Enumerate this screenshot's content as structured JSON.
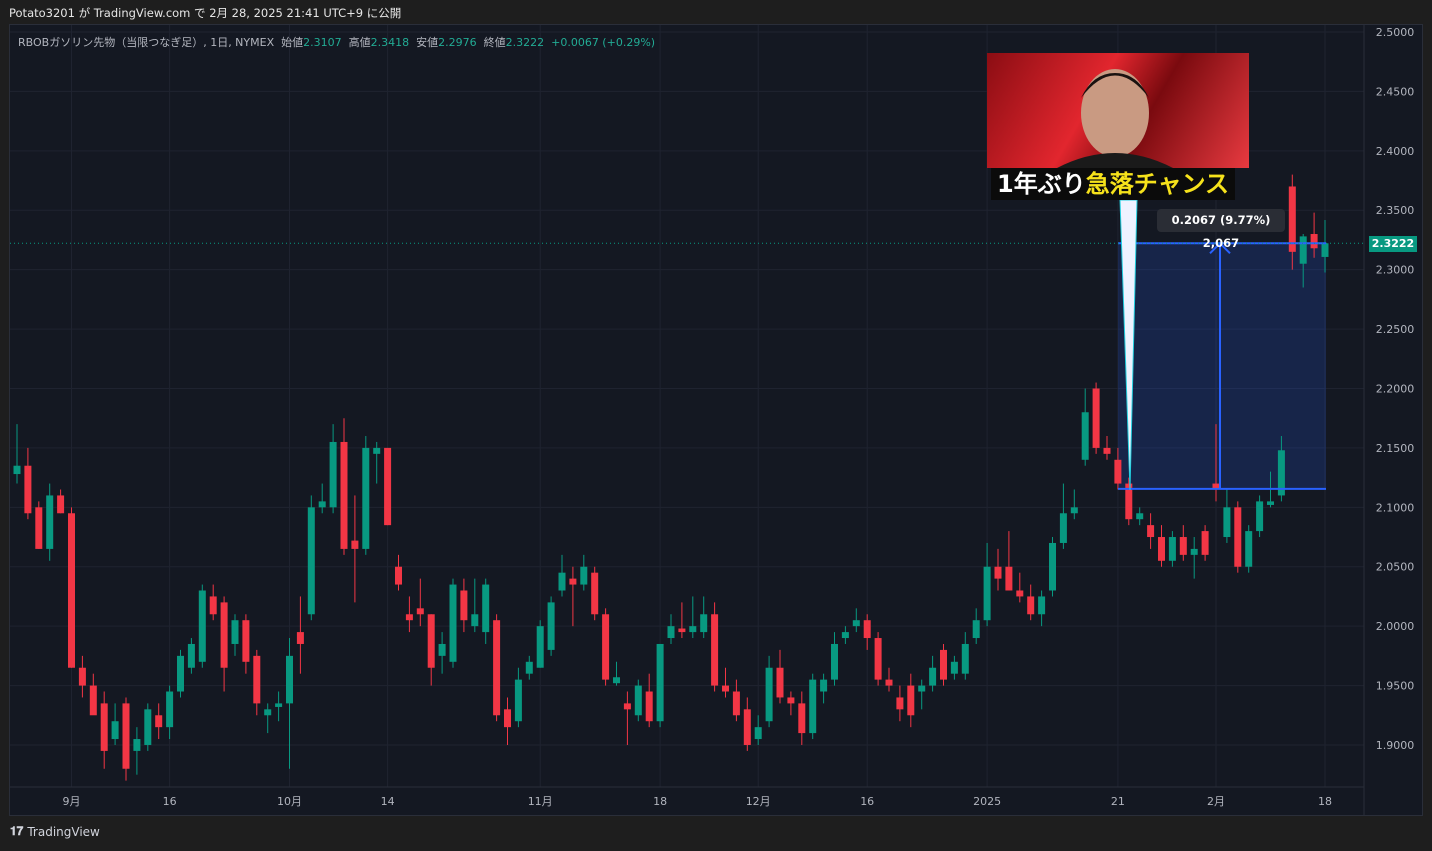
{
  "header": {
    "published": "Potato3201 が TradingView.com で 2月 28, 2025 21:41 UTC+9 に公開"
  },
  "legend": {
    "symbol": "RBOBガソリン先物（当限つなぎ足）, 1日, NYMEX",
    "open_label": "始値",
    "open": "2.3107",
    "high_label": "高値",
    "high": "2.3418",
    "low_label": "安値",
    "low": "2.2976",
    "close_label": "終値",
    "close": "2.3222",
    "change": "+0.0067 (+0.29%)"
  },
  "last_price": "2.3222",
  "measure": {
    "label": "0.2067 (9.77%) 2,067",
    "from_price": 2.1155,
    "to_price": 2.3222
  },
  "thumbnail": {
    "caption_white": "1年ぶり",
    "caption_yellow": "急落チャンス"
  },
  "footer": {
    "brand": "TradingView"
  },
  "colors": {
    "up": "#089981",
    "down": "#f23645",
    "background": "#141822",
    "measure": "#2962ff"
  },
  "chart_data": {
    "type": "candlestick",
    "ylim": [
      1.86,
      2.51
    ],
    "y_ticks": [
      "1.9000",
      "1.9500",
      "2.0000",
      "2.0500",
      "2.1000",
      "2.1500",
      "2.2000",
      "2.2500",
      "2.3000",
      "2.3500",
      "2.4000",
      "2.4500",
      "2.5000"
    ],
    "x_ticks": [
      {
        "label": "9月",
        "candle": 5
      },
      {
        "label": "16",
        "candle": 14
      },
      {
        "label": "10月",
        "candle": 25
      },
      {
        "label": "14",
        "candle": 34
      },
      {
        "label": "11月",
        "candle": 48
      },
      {
        "label": "18",
        "candle": 59
      },
      {
        "label": "12月",
        "candle": 68
      },
      {
        "label": "16",
        "candle": 78
      },
      {
        "label": "2025",
        "candle": 89
      },
      {
        "label": "21",
        "candle": 101
      },
      {
        "label": "2月",
        "candle": 110
      },
      {
        "label": "18",
        "candle": 120
      }
    ],
    "grid": true,
    "ohlc": [
      [
        2.128,
        2.17,
        2.12,
        2.135
      ],
      [
        2.135,
        2.15,
        2.09,
        2.095
      ],
      [
        2.1,
        2.105,
        2.065,
        2.065
      ],
      [
        2.065,
        2.12,
        2.055,
        2.11
      ],
      [
        2.11,
        2.115,
        2.095,
        2.095
      ],
      [
        2.095,
        2.1,
        1.965,
        1.965
      ],
      [
        1.965,
        1.975,
        1.94,
        1.95
      ],
      [
        1.95,
        1.96,
        1.93,
        1.925
      ],
      [
        1.935,
        1.945,
        1.88,
        1.895
      ],
      [
        1.905,
        1.935,
        1.9,
        1.92
      ],
      [
        1.935,
        1.94,
        1.87,
        1.88
      ],
      [
        1.895,
        1.915,
        1.875,
        1.905
      ],
      [
        1.9,
        1.935,
        1.895,
        1.93
      ],
      [
        1.925,
        1.935,
        1.905,
        1.915
      ],
      [
        1.915,
        1.95,
        1.905,
        1.945
      ],
      [
        1.945,
        1.98,
        1.94,
        1.975
      ],
      [
        1.965,
        1.99,
        1.96,
        1.985
      ],
      [
        1.97,
        2.035,
        1.965,
        2.03
      ],
      [
        2.025,
        2.035,
        2.005,
        2.01
      ],
      [
        2.02,
        2.025,
        1.945,
        1.965
      ],
      [
        1.985,
        2.01,
        1.975,
        2.005
      ],
      [
        2.005,
        2.01,
        1.96,
        1.97
      ],
      [
        1.975,
        1.98,
        1.925,
        1.935
      ],
      [
        1.925,
        1.935,
        1.91,
        1.93
      ],
      [
        1.932,
        1.945,
        1.92,
        1.935
      ],
      [
        1.935,
        1.99,
        1.88,
        1.975
      ],
      [
        1.995,
        2.025,
        1.96,
        1.985
      ],
      [
        2.01,
        2.11,
        2.005,
        2.1
      ],
      [
        2.1,
        2.12,
        2.095,
        2.105
      ],
      [
        2.1,
        2.17,
        2.095,
        2.155
      ],
      [
        2.155,
        2.175,
        2.06,
        2.065
      ],
      [
        2.072,
        2.11,
        2.02,
        2.065
      ],
      [
        2.065,
        2.16,
        2.06,
        2.15
      ],
      [
        2.145,
        2.155,
        2.12,
        2.15
      ],
      [
        2.15,
        2.15,
        2.085,
        2.085
      ],
      [
        2.05,
        2.06,
        2.03,
        2.035
      ],
      [
        2.01,
        2.025,
        1.995,
        2.005
      ],
      [
        2.015,
        2.04,
        2.0,
        2.01
      ],
      [
        2.01,
        2.01,
        1.95,
        1.965
      ],
      [
        1.975,
        1.995,
        1.96,
        1.985
      ],
      [
        1.97,
        2.04,
        1.965,
        2.035
      ],
      [
        2.03,
        2.04,
        1.995,
        2.005
      ],
      [
        2.0,
        2.04,
        1.995,
        2.01
      ],
      [
        1.995,
        2.04,
        1.985,
        2.035
      ],
      [
        2.005,
        2.01,
        1.92,
        1.925
      ],
      [
        1.93,
        1.94,
        1.9,
        1.915
      ],
      [
        1.92,
        1.965,
        1.915,
        1.955
      ],
      [
        1.96,
        1.975,
        1.955,
        1.97
      ],
      [
        1.965,
        2.005,
        1.965,
        2.0
      ],
      [
        1.98,
        2.025,
        1.975,
        2.02
      ],
      [
        2.03,
        2.06,
        2.025,
        2.045
      ],
      [
        2.04,
        2.05,
        2.0,
        2.035
      ],
      [
        2.035,
        2.06,
        2.03,
        2.05
      ],
      [
        2.045,
        2.05,
        2.005,
        2.01
      ],
      [
        2.01,
        2.015,
        1.95,
        1.955
      ],
      [
        1.952,
        1.97,
        1.95,
        1.957
      ],
      [
        1.935,
        1.945,
        1.9,
        1.93
      ],
      [
        1.925,
        1.955,
        1.92,
        1.95
      ],
      [
        1.945,
        1.96,
        1.915,
        1.92
      ],
      [
        1.92,
        1.985,
        1.915,
        1.985
      ],
      [
        1.99,
        2.01,
        1.985,
        2.0
      ],
      [
        1.998,
        2.02,
        1.99,
        1.995
      ],
      [
        1.995,
        2.025,
        1.99,
        2.0
      ],
      [
        1.995,
        2.025,
        1.99,
        2.01
      ],
      [
        2.01,
        2.02,
        1.945,
        1.95
      ],
      [
        1.95,
        1.965,
        1.94,
        1.945
      ],
      [
        1.945,
        1.955,
        1.92,
        1.925
      ],
      [
        1.93,
        1.94,
        1.895,
        1.9
      ],
      [
        1.905,
        1.925,
        1.9,
        1.915
      ],
      [
        1.92,
        1.975,
        1.915,
        1.965
      ],
      [
        1.965,
        1.98,
        1.935,
        1.94
      ],
      [
        1.94,
        1.945,
        1.925,
        1.935
      ],
      [
        1.935,
        1.945,
        1.9,
        1.91
      ],
      [
        1.91,
        1.96,
        1.905,
        1.955
      ],
      [
        1.945,
        1.96,
        1.935,
        1.955
      ],
      [
        1.955,
        1.995,
        1.95,
        1.985
      ],
      [
        1.99,
        2.0,
        1.985,
        1.995
      ],
      [
        2.0,
        2.015,
        1.995,
        2.005
      ],
      [
        2.005,
        2.01,
        1.98,
        1.99
      ],
      [
        1.99,
        1.995,
        1.95,
        1.955
      ],
      [
        1.955,
        1.965,
        1.945,
        1.95
      ],
      [
        1.94,
        1.95,
        1.92,
        1.93
      ],
      [
        1.95,
        1.96,
        1.915,
        1.925
      ],
      [
        1.945,
        1.955,
        1.93,
        1.95
      ],
      [
        1.95,
        1.975,
        1.945,
        1.965
      ],
      [
        1.98,
        1.985,
        1.95,
        1.955
      ],
      [
        1.96,
        1.975,
        1.955,
        1.97
      ],
      [
        1.96,
        1.995,
        1.955,
        1.985
      ],
      [
        1.99,
        2.015,
        1.985,
        2.005
      ],
      [
        2.005,
        2.07,
        2.0,
        2.05
      ],
      [
        2.05,
        2.065,
        2.03,
        2.04
      ],
      [
        2.05,
        2.08,
        2.03,
        2.03
      ],
      [
        2.03,
        2.045,
        2.02,
        2.025
      ],
      [
        2.025,
        2.035,
        2.005,
        2.01
      ],
      [
        2.01,
        2.03,
        2.0,
        2.025
      ],
      [
        2.03,
        2.075,
        2.025,
        2.07
      ],
      [
        2.07,
        2.12,
        2.065,
        2.095
      ],
      [
        2.095,
        2.115,
        2.09,
        2.1
      ],
      [
        2.14,
        2.2,
        2.135,
        2.18
      ],
      [
        2.2,
        2.205,
        2.145,
        2.15
      ],
      [
        2.15,
        2.16,
        2.14,
        2.145
      ],
      [
        2.14,
        2.15,
        2.115,
        2.12
      ],
      [
        2.12,
        2.125,
        2.085,
        2.09
      ],
      [
        2.09,
        2.1,
        2.085,
        2.095
      ],
      [
        2.085,
        2.095,
        2.065,
        2.075
      ],
      [
        2.075,
        2.085,
        2.05,
        2.055
      ],
      [
        2.055,
        2.08,
        2.05,
        2.075
      ],
      [
        2.075,
        2.085,
        2.055,
        2.06
      ],
      [
        2.06,
        2.075,
        2.04,
        2.065
      ],
      [
        2.08,
        2.085,
        2.055,
        2.06
      ],
      [
        2.12,
        2.17,
        2.105,
        2.115
      ],
      [
        2.075,
        2.115,
        2.07,
        2.1
      ],
      [
        2.1,
        2.105,
        2.045,
        2.05
      ],
      [
        2.05,
        2.085,
        2.045,
        2.08
      ],
      [
        2.08,
        2.11,
        2.075,
        2.105
      ],
      [
        2.102,
        2.13,
        2.1,
        2.105
      ],
      [
        2.11,
        2.16,
        2.105,
        2.148
      ],
      [
        2.37,
        2.38,
        2.3,
        2.315
      ],
      [
        2.305,
        2.33,
        2.285,
        2.328
      ],
      [
        2.33,
        2.348,
        2.31,
        2.318
      ],
      [
        2.3107,
        2.3418,
        2.2976,
        2.3222
      ]
    ]
  }
}
